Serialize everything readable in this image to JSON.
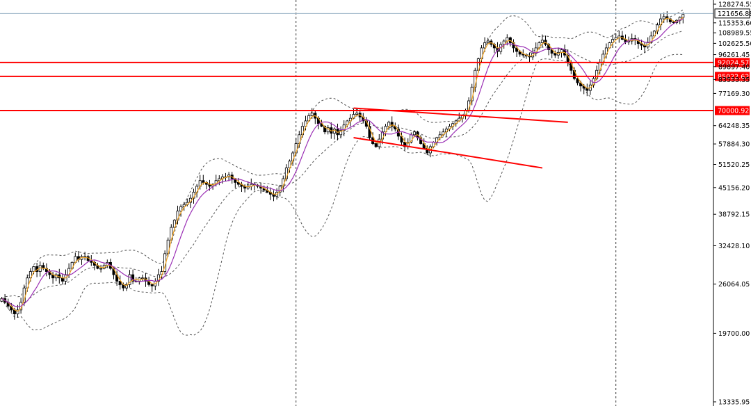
{
  "chart_data": {
    "type": "candlestick",
    "y_scale": "log",
    "ylim": [
      13335.95,
      128274.55
    ],
    "y_ticks": [
      "128274.55",
      "115353.60",
      "108989.55",
      "102625.50",
      "96261.45",
      "89897.40",
      "83533.35",
      "77169.30",
      "64248.35",
      "57884.30",
      "51520.25",
      "45156.20",
      "38792.15",
      "32428.10",
      "26064.05",
      "19700.00",
      "13335.95"
    ],
    "current_price": "121656.88",
    "levels": [
      {
        "value": "92024.57",
        "color": "#ff0000"
      },
      {
        "value": "85022.62",
        "color": "#ff0000"
      },
      {
        "value": "70000.92",
        "color": "#ff0000"
      }
    ],
    "channel_lines": [
      {
        "from": [
          110,
          71000
        ],
        "to": [
          177,
          65500
        ],
        "color": "#ff0000"
      },
      {
        "from": [
          110,
          60000
        ],
        "to": [
          169,
          50500
        ],
        "color": "#ff0000"
      }
    ],
    "period_separators": [
      92,
      192
    ],
    "ma_fast_color": "#f5a623",
    "ma_slow_color": "#9b30b5",
    "bands_color": "#555555",
    "candle_up_fill": "#ffffff",
    "candle_down_fill": "#000000",
    "closes": [
      24000,
      23500,
      23000,
      22500,
      22000,
      22500,
      23500,
      25500,
      27000,
      28000,
      28800,
      28000,
      29000,
      28500,
      28000,
      27500,
      27000,
      27500,
      27000,
      26500,
      27500,
      28500,
      29500,
      30500,
      30000,
      30500,
      30500,
      29800,
      29500,
      29000,
      28500,
      28500,
      29000,
      29500,
      28500,
      27500,
      26500,
      26000,
      25500,
      26000,
      27500,
      26500,
      26500,
      27000,
      27000,
      26500,
      26000,
      25800,
      26500,
      27500,
      28000,
      31000,
      33500,
      36000,
      37500,
      39500,
      40500,
      41000,
      41500,
      42500,
      44000,
      45500,
      47000,
      46500,
      46000,
      45500,
      46000,
      47000,
      47500,
      48000,
      48000,
      48500,
      47500,
      46500,
      46000,
      45500,
      45000,
      45500,
      46000,
      45800,
      45500,
      45000,
      44500,
      44000,
      43500,
      43000,
      44000,
      45500,
      47500,
      50500,
      52500,
      55000,
      58000,
      61000,
      64000,
      66000,
      68000,
      69000,
      67000,
      65000,
      64000,
      62000,
      63500,
      61500,
      63000,
      61000,
      62500,
      64500,
      66000,
      67000,
      68500,
      69000,
      67500,
      66000,
      64000,
      60000,
      58000,
      57000,
      59500,
      62000,
      64000,
      65500,
      64000,
      63000,
      60500,
      58500,
      57000,
      58500,
      61000,
      62000,
      60000,
      58000,
      56500,
      55000,
      57000,
      58500,
      60000,
      61000,
      62000,
      63000,
      64000,
      65000,
      66000,
      67000,
      68000,
      70000,
      74000,
      80000,
      88000,
      94000,
      100000,
      103000,
      104000,
      102000,
      100000,
      98000,
      102000,
      104000,
      106000,
      103000,
      100000,
      98000,
      96500,
      96000,
      95500,
      95000,
      97000,
      100000,
      103000,
      104500,
      102000,
      99000,
      97000,
      96000,
      97500,
      99000,
      96000,
      92000,
      88000,
      84000,
      82000,
      80500,
      79500,
      78500,
      81000,
      84000,
      88000,
      92000,
      96500,
      100000,
      103000,
      105000,
      106000,
      107000,
      105000,
      103500,
      104000,
      105500,
      104500,
      102500,
      101500,
      100500,
      103000,
      107000,
      110000,
      114000,
      118000,
      119500,
      118000,
      116000,
      115500,
      117000,
      119000,
      121000
    ]
  }
}
